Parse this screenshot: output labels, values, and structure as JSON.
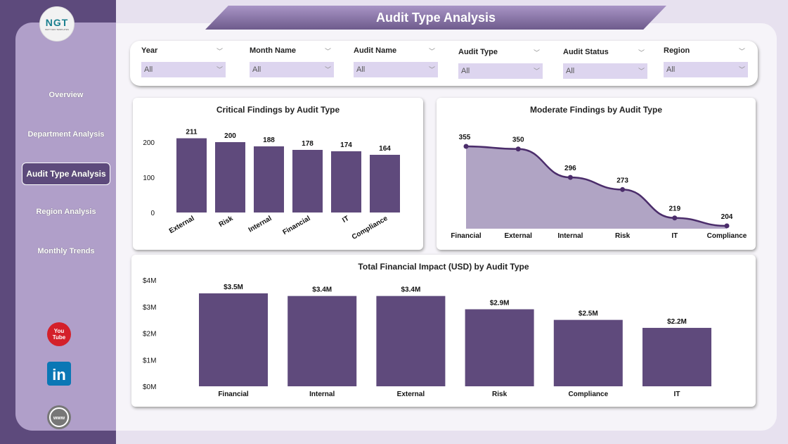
{
  "title": "Audit Type Analysis",
  "logo": {
    "text": "NGT",
    "subtext": "NEXT GEN TEMPLATES"
  },
  "nav": [
    {
      "label": "Overview"
    },
    {
      "label": "Department Analysis"
    },
    {
      "label": "Audit Type Analysis",
      "active": true
    },
    {
      "label": "Region Analysis"
    },
    {
      "label": "Monthly Trends"
    }
  ],
  "social": [
    "youtube-icon",
    "linkedin-icon",
    "globe-icon"
  ],
  "filters": [
    {
      "label": "Year",
      "value": "All"
    },
    {
      "label": "Month Name",
      "value": "All"
    },
    {
      "label": "Audit Name",
      "value": "All"
    },
    {
      "label": "Audit Type",
      "value": "All"
    },
    {
      "label": "Audit Status",
      "value": "All"
    },
    {
      "label": "Region",
      "value": "All"
    }
  ],
  "colors": {
    "bar": "#5f4a7c",
    "area": "#b0a4c4",
    "line": "#4b2d6b",
    "sidebar": "#5d4a7c"
  },
  "chart_data": [
    {
      "type": "bar",
      "title": "Critical Findings by Audit Type",
      "categories": [
        "External",
        "Risk",
        "Internal",
        "Financial",
        "IT",
        "Compliance"
      ],
      "values": [
        211,
        200,
        188,
        178,
        174,
        164
      ],
      "data_labels": [
        "211",
        "200",
        "188",
        "178",
        "174",
        "164"
      ],
      "yticks": [
        "0",
        "100",
        "200"
      ],
      "ylim": [
        0,
        200
      ]
    },
    {
      "type": "area",
      "title": "Moderate Findings by Audit Type",
      "categories": [
        "Financial",
        "External",
        "Internal",
        "Risk",
        "IT",
        "Compliance"
      ],
      "values": [
        355,
        350,
        296,
        273,
        219,
        204
      ],
      "data_labels": [
        "355",
        "350",
        "296",
        "273",
        "219",
        "204"
      ]
    },
    {
      "type": "bar",
      "title": "Total Financial Impact (USD) by Audit Type",
      "categories": [
        "Financial",
        "Internal",
        "External",
        "Risk",
        "Compliance",
        "IT"
      ],
      "values": [
        3.5,
        3.4,
        3.4,
        2.9,
        2.5,
        2.2
      ],
      "data_labels": [
        "$3.5M",
        "$3.4M",
        "$3.4M",
        "$2.9M",
        "$2.5M",
        "$2.2M"
      ],
      "yticks": [
        "$0M",
        "$1M",
        "$2M",
        "$3M",
        "$4M"
      ],
      "ylim": [
        0,
        4
      ],
      "unit": "USD millions"
    }
  ]
}
